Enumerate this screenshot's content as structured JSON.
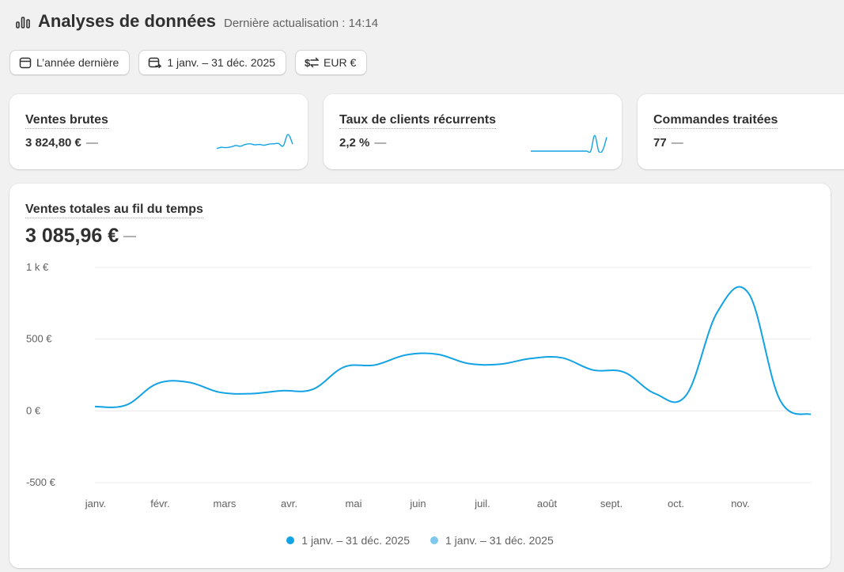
{
  "header": {
    "title": "Analyses de données",
    "subtitle": "Dernière actualisation : 14:14",
    "icon": "bar-chart-icon"
  },
  "filters": {
    "period_label": "L’année dernière",
    "range_label": "1 janv. – 31 déc. 2025",
    "currency_label": "EUR €"
  },
  "metrics": [
    {
      "label": "Ventes brutes",
      "value": "3 824,80 €",
      "change": "—",
      "sparkline": [
        0.15,
        0.22,
        0.2,
        0.24,
        0.32,
        0.28,
        0.38,
        0.42,
        0.36,
        0.38,
        0.34,
        0.4,
        0.42,
        0.44,
        0.3,
        0.95,
        0.4
      ]
    },
    {
      "label": "Taux de clients récurrents",
      "value": "2,2 %",
      "change": "—",
      "sparkline": [
        0,
        0,
        0,
        0,
        0,
        0,
        0,
        0,
        0,
        0,
        0,
        0,
        0,
        0,
        0,
        0,
        0.9,
        0,
        0.05,
        0.8
      ]
    },
    {
      "label": "Commandes traitées",
      "value": "77",
      "change": "—",
      "sparkline": []
    }
  ],
  "main_chart": {
    "title": "Ventes totales au fil du temps",
    "total": "3 085,96 €",
    "change": "—",
    "legend": [
      {
        "label": "1 janv. – 31 déc. 2025",
        "color": "#13a2e4"
      },
      {
        "label": "1 janv. – 31 déc. 2025",
        "color": "#7ec8ec"
      }
    ]
  },
  "chart_data": {
    "type": "line",
    "xlabel": "",
    "ylabel": "",
    "x_ticks": [
      "janv.",
      "févr.",
      "mars",
      "avr.",
      "mai",
      "juin",
      "juil.",
      "août",
      "sept.",
      "oct.",
      "nov."
    ],
    "y_ticks": [
      "1 k €",
      "500 €",
      "0 €",
      "-500 €"
    ],
    "y_tick_values": [
      1000,
      500,
      0,
      -500
    ],
    "ylim": [
      -500,
      1000
    ],
    "grid": true,
    "legend_position": "bottom",
    "color": "#13a2e4",
    "x": [
      "01-01",
      "01-15",
      "02-01",
      "02-15",
      "03-01",
      "03-15",
      "04-01",
      "04-15",
      "05-01",
      "05-15",
      "06-01",
      "06-15",
      "07-01",
      "07-15",
      "08-01",
      "08-15",
      "09-01",
      "09-15",
      "10-01",
      "10-15",
      "11-01",
      "11-15",
      "12-01",
      "12-15"
    ],
    "series": [
      {
        "values": [
          30,
          40,
          190,
          200,
          130,
          120,
          140,
          150,
          305,
          320,
          390,
          395,
          330,
          325,
          365,
          370,
          285,
          270,
          120,
          110,
          690,
          820,
          80,
          -25
        ]
      }
    ]
  }
}
